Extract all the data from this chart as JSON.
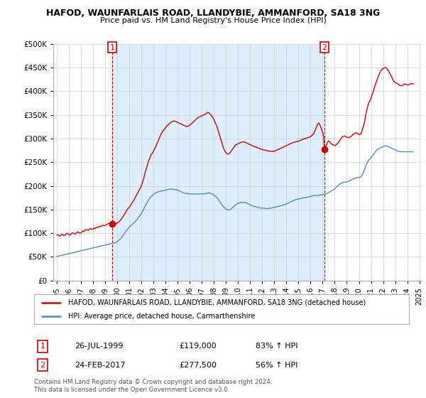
{
  "title": "HAFOD, WAUNFARLAIS ROAD, LLANDYBIE, AMMANFORD, SA18 3NG",
  "subtitle": "Price paid vs. HM Land Registry's House Price Index (HPI)",
  "legend_line1": "HAFOD, WAUNFARLAIS ROAD, LLANDYBIE, AMMANFORD, SA18 3NG (detached house)",
  "legend_line2": "HPI: Average price, detached house, Carmarthenshire",
  "annotation1_date": "26-JUL-1999",
  "annotation1_price": "£119,000",
  "annotation1_pct": "83% ↑ HPI",
  "annotation2_date": "24-FEB-2017",
  "annotation2_price": "£277,500",
  "annotation2_pct": "56% ↑ HPI",
  "footer": "Contains HM Land Registry data © Crown copyright and database right 2024.\nThis data is licensed under the Open Government Licence v3.0.",
  "red_color": "#cc0000",
  "blue_color": "#5588bb",
  "shade_color": "#ddeeff",
  "background_color": "#ffffff",
  "grid_color": "#cccccc",
  "ylim": [
    0,
    500000
  ],
  "yticks": [
    0,
    50000,
    100000,
    150000,
    200000,
    250000,
    300000,
    350000,
    400000,
    450000,
    500000
  ],
  "marker1_x": 1999.57,
  "marker1_y": 119000,
  "marker2_x": 2017.15,
  "marker2_y": 277500,
  "xlim_left": 1994.7,
  "xlim_right": 2025.2
}
